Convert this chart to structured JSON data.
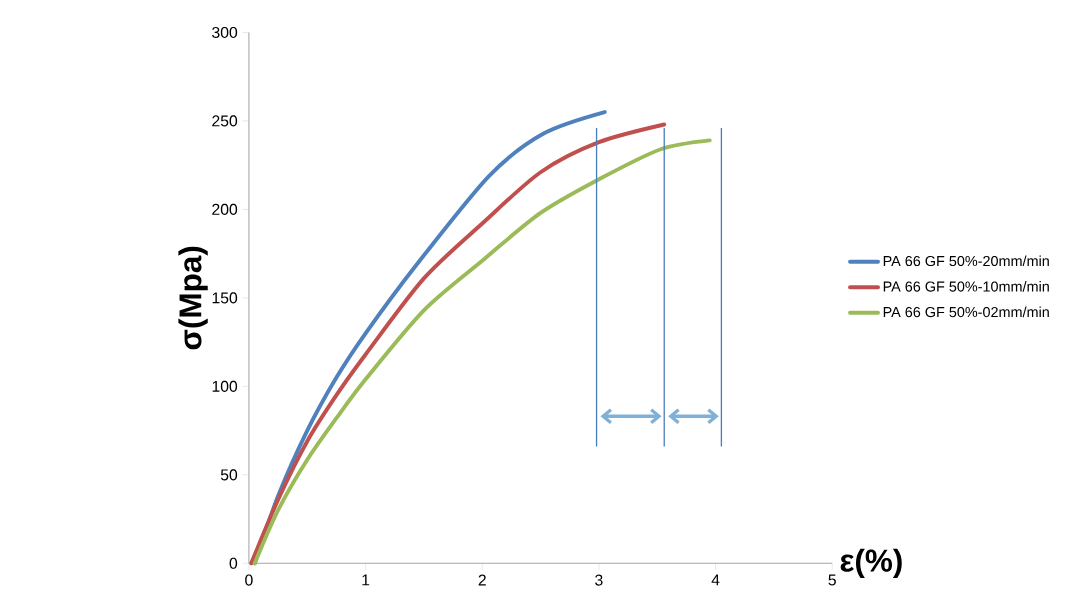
{
  "chart_data": {
    "type": "line",
    "xlabel": "ε(%)",
    "ylabel": "σ(Mpa)",
    "xlim": [
      0,
      5
    ],
    "ylim": [
      0,
      300
    ],
    "xticks": [
      0,
      1,
      2,
      3,
      4,
      5
    ],
    "yticks": [
      0,
      50,
      100,
      150,
      200,
      250,
      300
    ],
    "grid": false,
    "legend": "right",
    "marker": "none",
    "line_style": "solid",
    "series": [
      {
        "name": "PA 66 GF 50%-20mm/min",
        "color": "#4f81bd",
        "x": [
          0.05,
          0.25,
          0.5,
          0.75,
          1.0,
          1.44,
          2.06,
          2.53,
          3.05
        ],
        "values": [
          0,
          38,
          75,
          105,
          130,
          169,
          219,
          243,
          255
        ]
      },
      {
        "name": "PA 66 GF 50%-10mm/min",
        "color": "#c0504d",
        "x": [
          0.02,
          0.25,
          0.5,
          0.75,
          1.0,
          1.5,
          2.0,
          2.5,
          3.0,
          3.56
        ],
        "values": [
          0,
          36,
          69,
          95,
          118,
          161,
          192,
          221,
          238,
          248
        ]
      },
      {
        "name": "PA 66 GF 50%-02mm/min",
        "color": "#9bbb59",
        "x": [
          0.05,
          0.25,
          0.5,
          0.75,
          1.0,
          1.5,
          2.0,
          2.5,
          3.0,
          3.53,
          3.95
        ],
        "values": [
          0,
          30,
          58.5,
          82,
          104,
          143,
          171,
          198,
          217,
          234,
          239
        ]
      }
    ],
    "ref_lines": [
      {
        "axis": "x",
        "value": 2.98,
        "color": "#4a7ebb"
      },
      {
        "axis": "x",
        "value": 3.56,
        "color": "#4a7ebb"
      },
      {
        "axis": "x",
        "value": 4.05,
        "color": "#4a7ebb"
      }
    ]
  }
}
